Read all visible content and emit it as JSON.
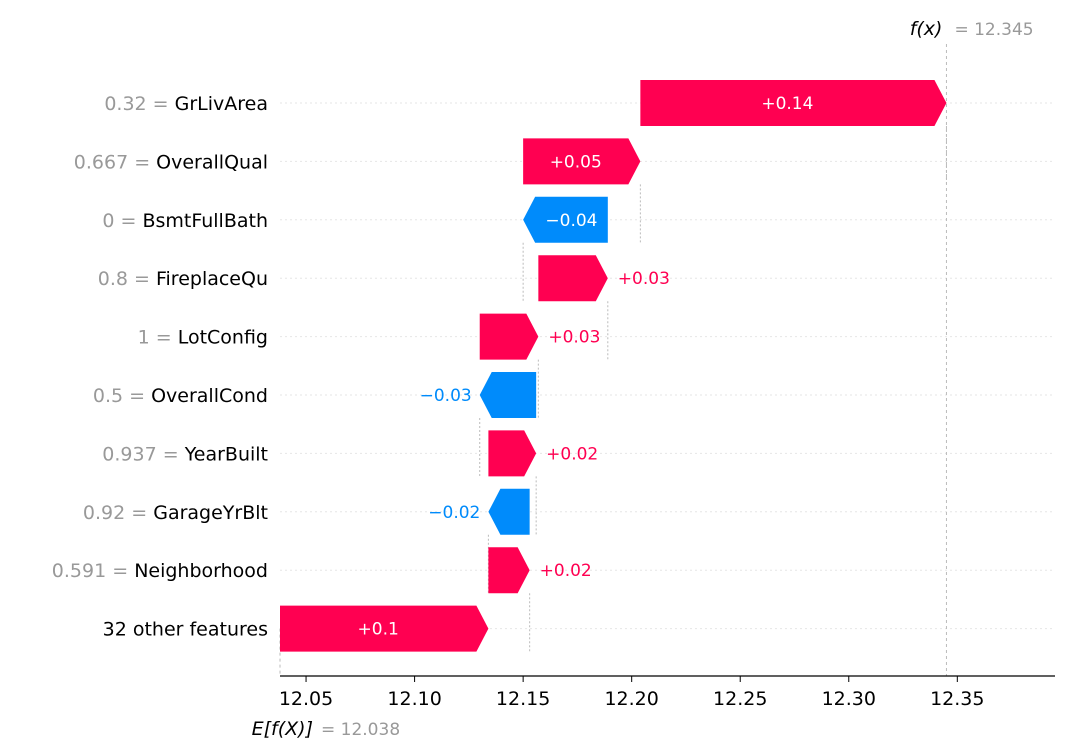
{
  "chart_data": {
    "type": "bar",
    "subtype": "waterfall",
    "title": "",
    "fx": {
      "label": "f(x)",
      "value_text": "12.345",
      "value": 12.345
    },
    "base": {
      "label": "E[f(X)]",
      "value_text": "12.038",
      "value": 12.038
    },
    "xlim": [
      12.038,
      12.395
    ],
    "xticks": [
      "12.05",
      "12.10",
      "12.15",
      "12.20",
      "12.25",
      "12.30",
      "12.35"
    ],
    "features": [
      {
        "value": "0.32",
        "name": "GrLivArea",
        "label": "+0.14",
        "start": 12.204,
        "end": 12.345
      },
      {
        "value": "0.667",
        "name": "OverallQual",
        "label": "+0.05",
        "start": 12.15,
        "end": 12.204
      },
      {
        "value": "0",
        "name": "BsmtFullBath",
        "label": "−0.04",
        "start": 12.189,
        "end": 12.15
      },
      {
        "value": "0.8",
        "name": "FireplaceQu",
        "label": "+0.03",
        "start": 12.157,
        "end": 12.189
      },
      {
        "value": "1",
        "name": "LotConfig",
        "label": "+0.03",
        "start": 12.13,
        "end": 12.157
      },
      {
        "value": "0.5",
        "name": "OverallCond",
        "label": "−0.03",
        "start": 12.156,
        "end": 12.13
      },
      {
        "value": "0.937",
        "name": "YearBuilt",
        "label": "+0.02",
        "start": 12.134,
        "end": 12.156
      },
      {
        "value": "0.92",
        "name": "GarageYrBlt",
        "label": "−0.02",
        "start": 12.153,
        "end": 12.134
      },
      {
        "value": "0.591",
        "name": "Neighborhood",
        "label": "+0.02",
        "start": 12.134,
        "end": 12.153
      },
      {
        "value": "",
        "name": "32 other features",
        "label": "+0.1",
        "start": 12.038,
        "end": 12.134
      }
    ],
    "colors": {
      "positive": "#ff0051",
      "negative": "#008bfb",
      "muted": "#999999"
    }
  }
}
